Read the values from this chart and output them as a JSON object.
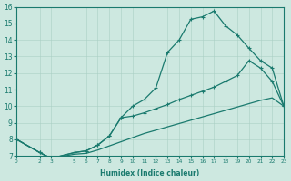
{
  "xlabel": "Humidex (Indice chaleur)",
  "bg_color": "#cde8e0",
  "line_color": "#1a7a6e",
  "grid_color": "#aacfc5",
  "xlim": [
    0,
    23
  ],
  "ylim": [
    7,
    16
  ],
  "xticks": [
    0,
    2,
    3,
    5,
    6,
    7,
    8,
    9,
    10,
    11,
    12,
    13,
    14,
    15,
    16,
    17,
    18,
    19,
    20,
    21,
    22,
    23
  ],
  "yticks": [
    7,
    8,
    9,
    10,
    11,
    12,
    13,
    14,
    15,
    16
  ],
  "line1_x": [
    0,
    2,
    3,
    5,
    6,
    7,
    8,
    9,
    10,
    11,
    12,
    13,
    14,
    15,
    16,
    17,
    18,
    19,
    20,
    21,
    22,
    23
  ],
  "line1_y": [
    8.0,
    7.2,
    6.85,
    7.2,
    7.3,
    7.65,
    8.2,
    9.3,
    10.0,
    10.4,
    11.1,
    13.25,
    14.0,
    15.25,
    15.4,
    15.75,
    14.85,
    14.3,
    13.5,
    12.75,
    12.3,
    10.0
  ],
  "line2_x": [
    0,
    2,
    3,
    5,
    6,
    7,
    8,
    9,
    10,
    11,
    12,
    13,
    14,
    15,
    16,
    17,
    18,
    19,
    20,
    21,
    22,
    23
  ],
  "line2_y": [
    8.0,
    7.2,
    6.85,
    7.2,
    7.3,
    7.65,
    8.2,
    9.3,
    9.4,
    9.6,
    9.85,
    10.1,
    10.4,
    10.65,
    10.9,
    11.15,
    11.5,
    11.85,
    12.75,
    12.3,
    11.5,
    10.0
  ],
  "line3_x": [
    0,
    2,
    3,
    5,
    6,
    7,
    8,
    9,
    10,
    11,
    12,
    13,
    14,
    15,
    16,
    17,
    18,
    19,
    20,
    21,
    22,
    23
  ],
  "line3_y": [
    8.0,
    7.2,
    6.85,
    7.1,
    7.15,
    7.35,
    7.6,
    7.85,
    8.1,
    8.35,
    8.55,
    8.75,
    8.95,
    9.15,
    9.35,
    9.55,
    9.75,
    9.95,
    10.15,
    10.35,
    10.5,
    10.0
  ],
  "lw": 0.9,
  "ms": 3.5
}
